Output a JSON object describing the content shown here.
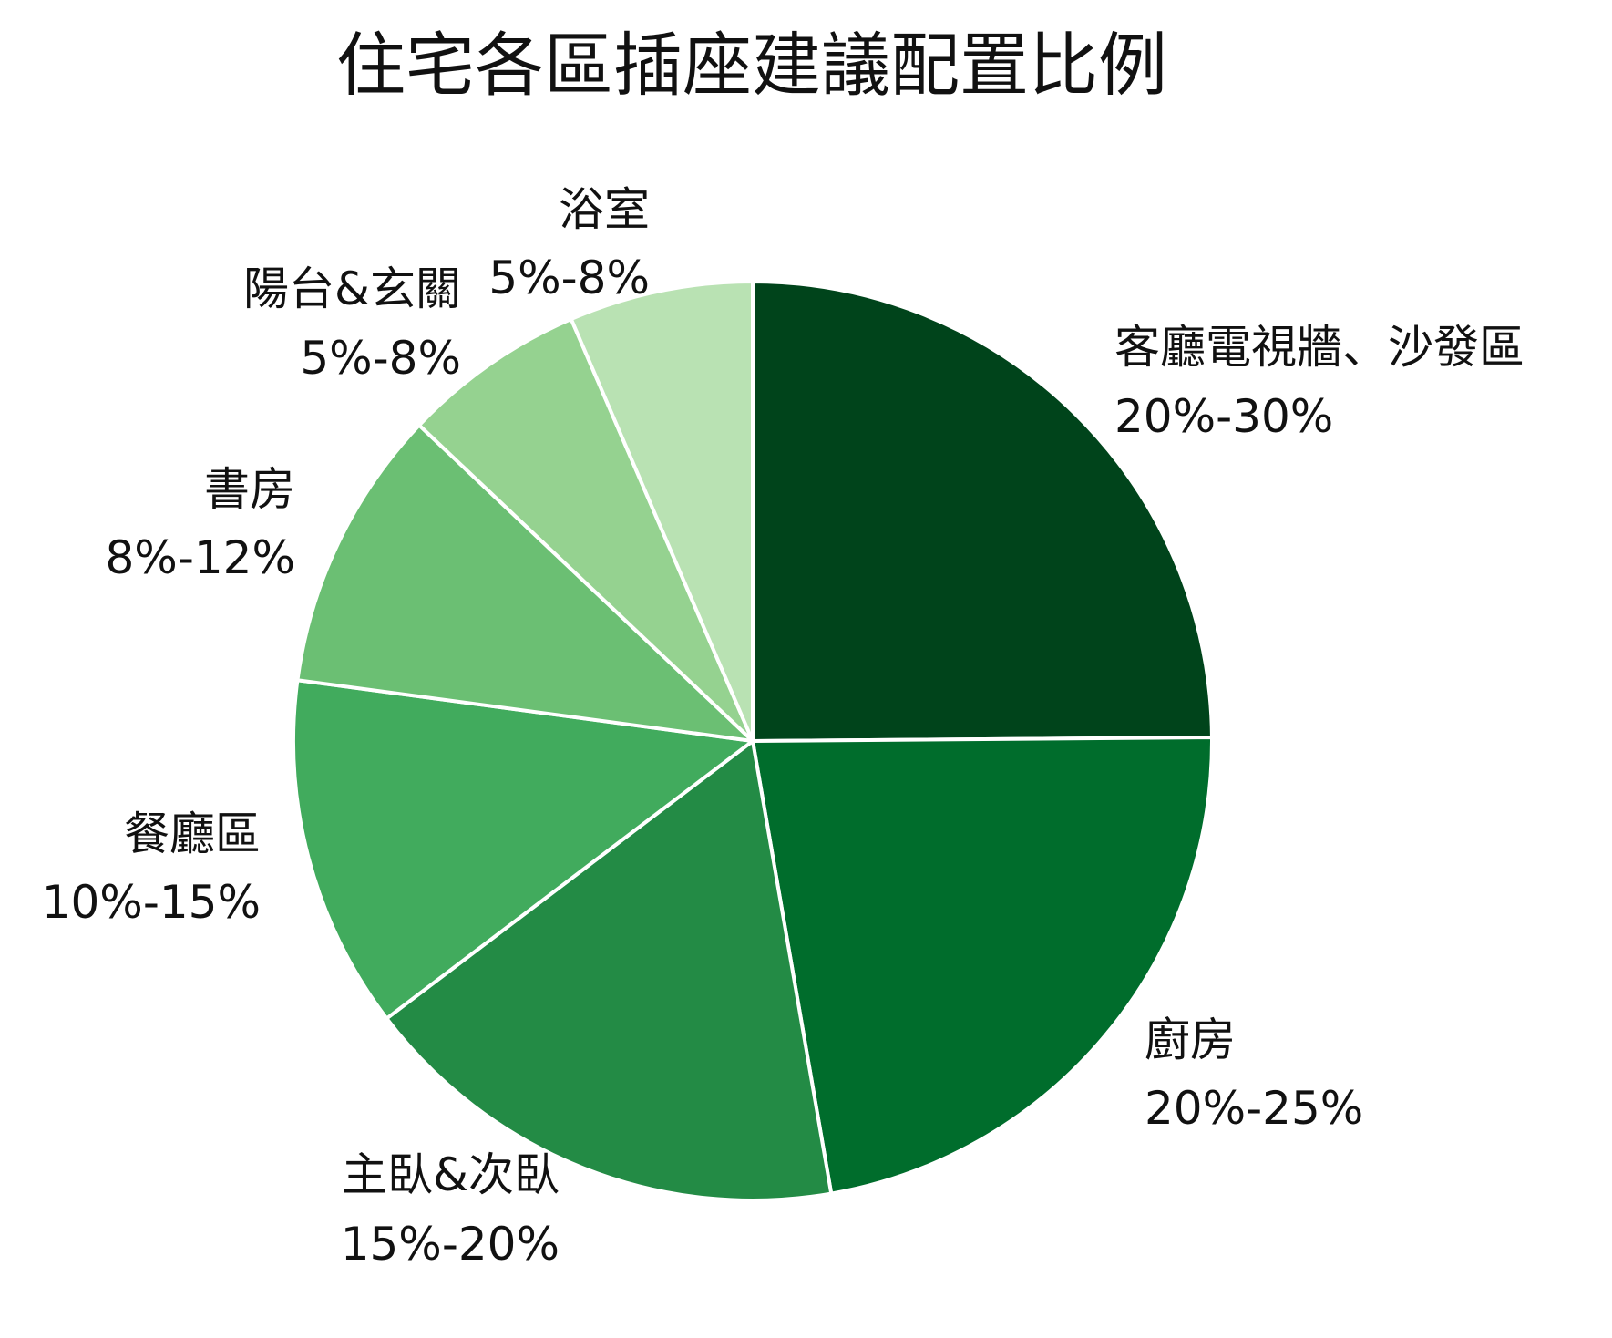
{
  "chart_data": {
    "type": "pie",
    "title": "住宅各區插座建議配置比例",
    "slices": [
      {
        "label": "客廳電視牆、沙發區",
        "value_text": "20%-30%",
        "value": 25,
        "color": "#00441b"
      },
      {
        "label": "廚房",
        "value_text": "20%-25%",
        "value": 22.5,
        "color": "#006d2c"
      },
      {
        "label": "主臥&次臥",
        "value_text": "15%-20%",
        "value": 17.5,
        "color": "#238b45"
      },
      {
        "label": "餐廳區",
        "value_text": "10%-15%",
        "value": 12.5,
        "color": "#41ab5d"
      },
      {
        "label": "書房",
        "value_text": "8%-12%",
        "value": 10,
        "color": "#6bbf73"
      },
      {
        "label": "陽台&玄關",
        "value_text": "5%-8%",
        "value": 6.5,
        "color": "#95d290"
      },
      {
        "label": "浴室",
        "value_text": "5%-8%",
        "value": 6.5,
        "color": "#b9e2b3"
      }
    ],
    "start_angle": "12 o'clock",
    "direction": "clockwise",
    "slice_border_color": "#ffffff"
  }
}
